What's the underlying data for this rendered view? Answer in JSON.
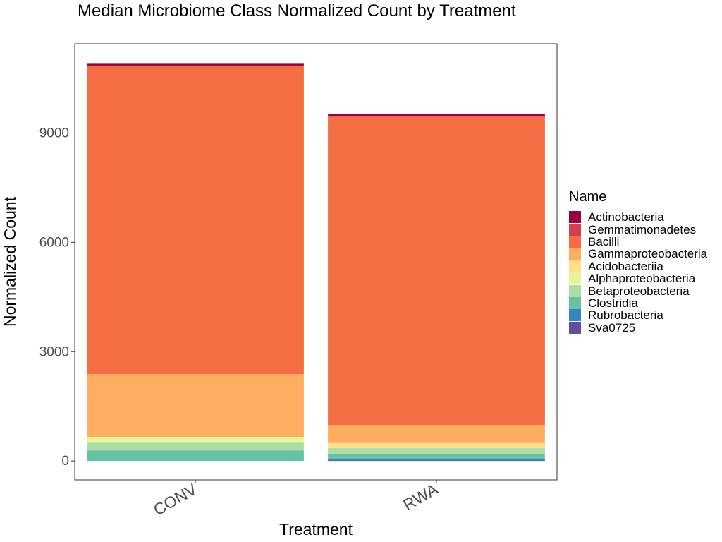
{
  "chart_data": {
    "type": "bar",
    "stacked": true,
    "title": "Median Microbiome Class Normalized Count by Treatment",
    "xlabel": "Treatment",
    "ylabel": "Normalized Count",
    "categories": [
      "CONV",
      "RWA"
    ],
    "ylim": [
      -520,
      11450
    ],
    "yticks": [
      0,
      3000,
      6000,
      9000
    ],
    "grid": false,
    "legend_title": "Name",
    "legend_position": "right",
    "series": [
      {
        "name": "Sva0725",
        "color": "#5E4FA2",
        "values": [
          0,
          20
        ]
      },
      {
        "name": "Rubrobacteria",
        "color": "#3288BD",
        "values": [
          0,
          30
        ]
      },
      {
        "name": "Clostridia",
        "color": "#66C2A5",
        "values": [
          290,
          130
        ]
      },
      {
        "name": "Betaproteobacteria",
        "color": "#ABDDA4",
        "values": [
          210,
          170
        ]
      },
      {
        "name": "Alphaproteobacteria",
        "color": "#E6F598",
        "values": [
          160,
          0
        ]
      },
      {
        "name": "Acidobacteriia",
        "color": "#FEE08B",
        "values": [
          0,
          140
        ]
      },
      {
        "name": "Gammaproteobacteria",
        "color": "#FDAE61",
        "values": [
          1720,
          500
        ]
      },
      {
        "name": "Bacilli",
        "color": "#F46D43",
        "values": [
          8470,
          8460
        ]
      },
      {
        "name": "Gemmatimonadetes",
        "color": "#D53E4F",
        "values": [
          0,
          0
        ]
      },
      {
        "name": "Actinobacteria",
        "color": "#9E0142",
        "values": [
          70,
          70
        ]
      }
    ],
    "legend_order": [
      "Actinobacteria",
      "Gemmatimonadetes",
      "Bacilli",
      "Gammaproteobacteria",
      "Acidobacteriia",
      "Alphaproteobacteria",
      "Betaproteobacteria",
      "Clostridia",
      "Rubrobacteria",
      "Sva0725"
    ]
  }
}
